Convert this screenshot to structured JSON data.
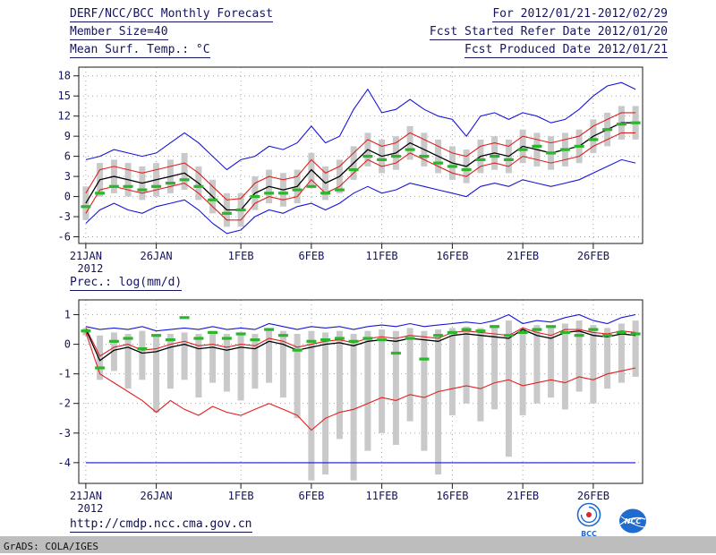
{
  "header": {
    "title": "DERF/NCC/BCC Monthly Forecast",
    "member_size": "Member Size=40",
    "temp_label": "Mean Surf. Temp.: °C",
    "for_range": "For 2012/01/21-2012/02/29",
    "refer_date": "Fcst Started Refer Date 2012/01/20",
    "produced_date": "Fcst Produced Date 2012/01/21"
  },
  "footer": {
    "url": "http://cmdp.ncc.cma.gov.cn",
    "grads_credit": "GrADS: COLA/IGES",
    "logos": [
      {
        "name": "bcc-logo",
        "label": "BCC"
      },
      {
        "name": "ncc-logo",
        "label": "NCC"
      }
    ]
  },
  "colors": {
    "text": "#14145f",
    "frame": "#1a1a1a",
    "grid": "#9a9a9a",
    "bar": "#c9c9c9",
    "blue": "#1616d8",
    "red": "#e02020",
    "green": "#2db52d",
    "black": "#000000",
    "strip_bg": "#bdbdbd",
    "logo_blue": "#1f6bd0",
    "logo_red": "#d42a2a"
  },
  "chart_data": [
    {
      "type": "line",
      "name": "temperature-forecast",
      "title": "Mean Surf. Temp.: °C",
      "n_days": 40,
      "x_tick_labels": [
        "21JAN",
        "26JAN",
        "1FEB",
        "6FEB",
        "11FEB",
        "16FEB",
        "21FEB",
        "26FEB"
      ],
      "x_tick_positions": [
        0,
        5,
        11,
        16,
        21,
        26,
        31,
        36
      ],
      "x_sub_label": "2012",
      "ylim": [
        -7,
        19.3
      ],
      "yticks": [
        18,
        15,
        12,
        9,
        6,
        3,
        0,
        -3,
        -6
      ],
      "grid": true,
      "legend": "none",
      "series": [
        {
          "name": "ensemble-max",
          "color": "#1616d8",
          "width": 1.1,
          "values": [
            5.5,
            6,
            7,
            6.5,
            6,
            6.5,
            8,
            9.5,
            8,
            6,
            4,
            5.5,
            6,
            7.5,
            7,
            8,
            10.5,
            8,
            9,
            13,
            16,
            12.5,
            13,
            14.5,
            13,
            12,
            11.5,
            9,
            12,
            12.5,
            11.5,
            12.5,
            12,
            11,
            11.5,
            13,
            15,
            16.5,
            17,
            16
          ]
        },
        {
          "name": "mean-plus-std",
          "color": "#e02020",
          "width": 1.1,
          "values": [
            0.5,
            4,
            4.5,
            4,
            3.5,
            4,
            4.5,
            5,
            3.5,
            1.5,
            -0.5,
            -0.3,
            2,
            3,
            2.5,
            3,
            5.5,
            3.5,
            4.5,
            6.5,
            8.5,
            7.5,
            8,
            9.5,
            8.5,
            7.5,
            6.5,
            6,
            7.5,
            8,
            7.5,
            9,
            8.5,
            8,
            8.5,
            9,
            10.5,
            11.5,
            12.5,
            12.5
          ]
        },
        {
          "name": "ensemble-mean",
          "color": "#000000",
          "width": 1.3,
          "values": [
            -1,
            2.5,
            3,
            2.5,
            2,
            2.5,
            3,
            3.5,
            2,
            0,
            -2,
            -2,
            0.5,
            1.5,
            1,
            1.5,
            4,
            2,
            3,
            5,
            7,
            6,
            6.5,
            8,
            7,
            6,
            5,
            4.5,
            6,
            6.5,
            6,
            7.5,
            7,
            6.5,
            7,
            7.5,
            9,
            10,
            11,
            11
          ]
        },
        {
          "name": "mean-minus-std",
          "color": "#e02020",
          "width": 1.1,
          "values": [
            -2.5,
            1,
            1.5,
            1,
            0.5,
            1,
            1.5,
            2,
            0.5,
            -1.5,
            -3.5,
            -3.5,
            -1,
            0,
            -0.5,
            0,
            2.5,
            0.5,
            1.5,
            3.5,
            5.5,
            4.5,
            5,
            6.5,
            5.5,
            4.5,
            3.5,
            3,
            4.5,
            5,
            4.5,
            6,
            5.5,
            5,
            5.5,
            6,
            7.5,
            8.5,
            9.5,
            9.5
          ]
        },
        {
          "name": "ensemble-min",
          "color": "#1616d8",
          "width": 1.1,
          "values": [
            -4,
            -2,
            -1,
            -2,
            -2.5,
            -1.5,
            -1,
            -0.5,
            -2,
            -4,
            -5.5,
            -5,
            -3,
            -2,
            -2.5,
            -1.5,
            -1,
            -2,
            -1,
            0.5,
            1.5,
            0.5,
            1,
            2,
            1.5,
            1,
            0.5,
            0,
            1.5,
            2,
            1.5,
            2.5,
            2,
            1.5,
            2,
            2.5,
            3.5,
            4.5,
            5.5,
            5
          ]
        }
      ],
      "bars": {
        "name": "ensemble-spread",
        "color": "#c9c9c9",
        "high": [
          1.5,
          5,
          5.5,
          5,
          4.5,
          5,
          5.5,
          6.5,
          4.5,
          2.5,
          0.5,
          0.5,
          3,
          4,
          3.5,
          4,
          6.5,
          4.5,
          5.5,
          7.5,
          9.5,
          8.5,
          9,
          10.5,
          9.5,
          8.5,
          7.5,
          7,
          8.5,
          9,
          8.5,
          10,
          9.5,
          9,
          9.5,
          10,
          11.5,
          12.5,
          13.5,
          13.5
        ],
        "low": [
          -3.5,
          0,
          0.5,
          0,
          -0.5,
          0,
          0.5,
          1,
          -0.5,
          -2.5,
          -4.5,
          -4.5,
          -2,
          -1,
          -1.5,
          -1,
          1.5,
          -0.5,
          0.5,
          2.5,
          4.5,
          3.5,
          4,
          5.5,
          4.5,
          3.5,
          2.5,
          2,
          3.5,
          4,
          3.5,
          5,
          4.5,
          4,
          4.5,
          5,
          6.5,
          7.5,
          8.5,
          8.5
        ]
      },
      "markers": {
        "name": "observation",
        "color": "#2db52d",
        "values": [
          -1.5,
          0.5,
          1.5,
          1.5,
          1,
          1.5,
          2,
          2.5,
          1.5,
          -0.5,
          -2.5,
          -2,
          0,
          0.5,
          0.5,
          1,
          1.5,
          0.5,
          1,
          4,
          6,
          5.5,
          6,
          7,
          6,
          5,
          4.5,
          4,
          5.5,
          6,
          5.5,
          7,
          7.5,
          6.5,
          7,
          7.5,
          8.5,
          10,
          10.8,
          11
        ]
      }
    },
    {
      "type": "line",
      "name": "precipitation-forecast",
      "title": "Prec.: log(mm/d)",
      "n_days": 40,
      "x_tick_labels": [
        "21JAN",
        "26JAN",
        "1FEB",
        "6FEB",
        "11FEB",
        "16FEB",
        "21FEB",
        "26FEB"
      ],
      "x_tick_positions": [
        0,
        5,
        11,
        16,
        21,
        26,
        31,
        36
      ],
      "x_sub_label": "2012",
      "ylim": [
        -4.7,
        1.5
      ],
      "yticks": [
        1,
        0,
        -1,
        -2,
        -3,
        -4
      ],
      "grid": true,
      "legend": "none",
      "series": [
        {
          "name": "ensemble-max",
          "color": "#1616d8",
          "width": 1.1,
          "values": [
            0.6,
            0.5,
            0.55,
            0.5,
            0.6,
            0.45,
            0.5,
            0.55,
            0.5,
            0.6,
            0.5,
            0.55,
            0.5,
            0.7,
            0.6,
            0.5,
            0.6,
            0.55,
            0.6,
            0.5,
            0.6,
            0.65,
            0.6,
            0.7,
            0.6,
            0.65,
            0.7,
            0.75,
            0.7,
            0.8,
            1.0,
            0.7,
            0.8,
            0.75,
            0.9,
            1.0,
            0.8,
            0.7,
            0.9,
            1.0
          ]
        },
        {
          "name": "mean-plus-std",
          "color": "#e02020",
          "width": 1.1,
          "values": [
            0.55,
            -0.4,
            -0.1,
            0,
            -0.2,
            -0.15,
            0,
            0.1,
            -0.05,
            0,
            -0.1,
            0,
            -0.05,
            0.2,
            0.1,
            -0.1,
            0,
            0.1,
            0.15,
            0.05,
            0.2,
            0.25,
            0.2,
            0.3,
            0.25,
            0.2,
            0.4,
            0.45,
            0.4,
            0.35,
            0.3,
            0.55,
            0.4,
            0.3,
            0.5,
            0.5,
            0.4,
            0.35,
            0.45,
            0.4
          ]
        },
        {
          "name": "ensemble-mean",
          "color": "#000000",
          "width": 1.3,
          "values": [
            0.5,
            -0.55,
            -0.2,
            -0.1,
            -0.3,
            -0.25,
            -0.1,
            0,
            -0.15,
            -0.1,
            -0.2,
            -0.1,
            -0.15,
            0.1,
            0,
            -0.2,
            -0.1,
            0,
            0.05,
            -0.05,
            0.1,
            0.15,
            0.1,
            0.2,
            0.15,
            0.1,
            0.3,
            0.35,
            0.3,
            0.25,
            0.2,
            0.5,
            0.3,
            0.2,
            0.4,
            0.45,
            0.3,
            0.25,
            0.35,
            0.3
          ]
        },
        {
          "name": "mean-minus-std",
          "color": "#e02020",
          "width": 1.1,
          "values": [
            0.4,
            -1,
            -1.3,
            -1.6,
            -1.9,
            -2.3,
            -1.9,
            -2.2,
            -2.4,
            -2.1,
            -2.3,
            -2.4,
            -2.2,
            -2,
            -2.2,
            -2.4,
            -2.9,
            -2.5,
            -2.3,
            -2.2,
            -2,
            -1.8,
            -1.9,
            -1.7,
            -1.8,
            -1.6,
            -1.5,
            -1.4,
            -1.5,
            -1.3,
            -1.2,
            -1.4,
            -1.3,
            -1.2,
            -1.3,
            -1.1,
            -1.2,
            -1,
            -0.9,
            -0.8
          ]
        },
        {
          "name": "ensemble-min",
          "color": "#1616d8",
          "width": 1.1,
          "values": [
            -4,
            -4,
            -4,
            -4,
            -4,
            -4,
            -4,
            -4,
            -4,
            -4,
            -4,
            -4,
            -4,
            -4,
            -4,
            -4,
            -4,
            -4,
            -4,
            -4,
            -4,
            -4,
            -4,
            -4,
            -4,
            -4,
            -4,
            -4,
            -4,
            -4,
            -4,
            -4,
            -4,
            -4,
            -4,
            -4,
            -4,
            -4,
            -4,
            -4
          ]
        }
      ],
      "bars": {
        "name": "ensemble-spread",
        "color": "#c9c9c9",
        "high": [
          0.55,
          0.3,
          0.4,
          0.35,
          0.45,
          0.3,
          0.35,
          0.4,
          0.35,
          0.45,
          0.35,
          0.4,
          0.35,
          0.55,
          0.45,
          0.35,
          0.45,
          0.4,
          0.45,
          0.35,
          0.45,
          0.5,
          0.45,
          0.55,
          0.45,
          0.5,
          0.55,
          0.6,
          0.55,
          0.65,
          0.8,
          0.55,
          0.65,
          0.6,
          0.7,
          0.8,
          0.65,
          0.55,
          0.7,
          0.8
        ],
        "low": [
          0.3,
          -1.2,
          -0.9,
          -1.5,
          -1.2,
          -2.3,
          -1.5,
          -1.2,
          -1.8,
          -1.3,
          -1.6,
          -1.9,
          -1.5,
          -1.3,
          -1.8,
          -2.5,
          -4.6,
          -4.4,
          -3.2,
          -4.6,
          -3.6,
          -3.0,
          -3.4,
          -2.6,
          -3.6,
          -4.4,
          -2.4,
          -2.0,
          -2.6,
          -2.2,
          -3.8,
          -2.4,
          -2.0,
          -1.8,
          -2.2,
          -1.6,
          -2.0,
          -1.5,
          -1.3,
          -1.1
        ]
      },
      "markers": {
        "name": "observation",
        "color": "#2db52d",
        "values": [
          0.45,
          -0.8,
          0.1,
          0.2,
          -0.15,
          0.3,
          0.15,
          0.9,
          0.2,
          0.4,
          0.2,
          0.35,
          0.15,
          0.5,
          0.3,
          -0.2,
          0.1,
          0.15,
          0.2,
          0.1,
          0.2,
          0.15,
          -0.3,
          0.2,
          -0.5,
          0.3,
          0.4,
          0.5,
          0.45,
          0.6,
          0.3,
          0.4,
          0.5,
          0.6,
          0.4,
          0.3,
          0.5,
          0.3,
          0.4,
          0.35
        ]
      }
    }
  ]
}
